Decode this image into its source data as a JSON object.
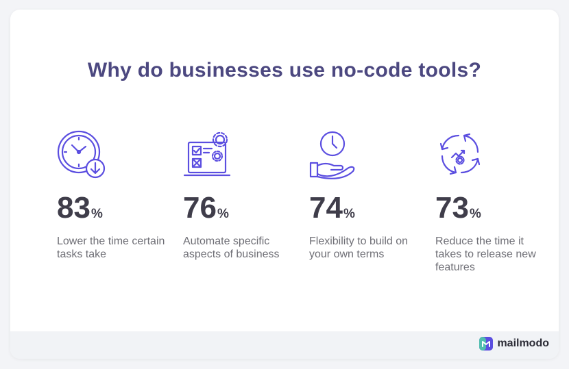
{
  "title": "Why do businesses use no-code tools?",
  "stats": [
    {
      "value": "83",
      "unit": "%",
      "caption": "Lower the time certain tasks take",
      "icon": "clock-down-icon"
    },
    {
      "value": "76",
      "unit": "%",
      "caption": "Automate specific aspects of business",
      "icon": "automation-laptop-icon"
    },
    {
      "value": "74",
      "unit": "%",
      "caption": "Flexibility to build on your own terms",
      "icon": "clock-in-hand-icon"
    },
    {
      "value": "73",
      "unit": "%",
      "caption": "Reduce the time it takes to release new features",
      "icon": "release-cycle-icon"
    }
  ],
  "brand": {
    "name": "mailmodo",
    "logo": "mailmodo-logo-icon"
  },
  "colors": {
    "accent": "#5b4ee0",
    "title": "#4c4880"
  }
}
